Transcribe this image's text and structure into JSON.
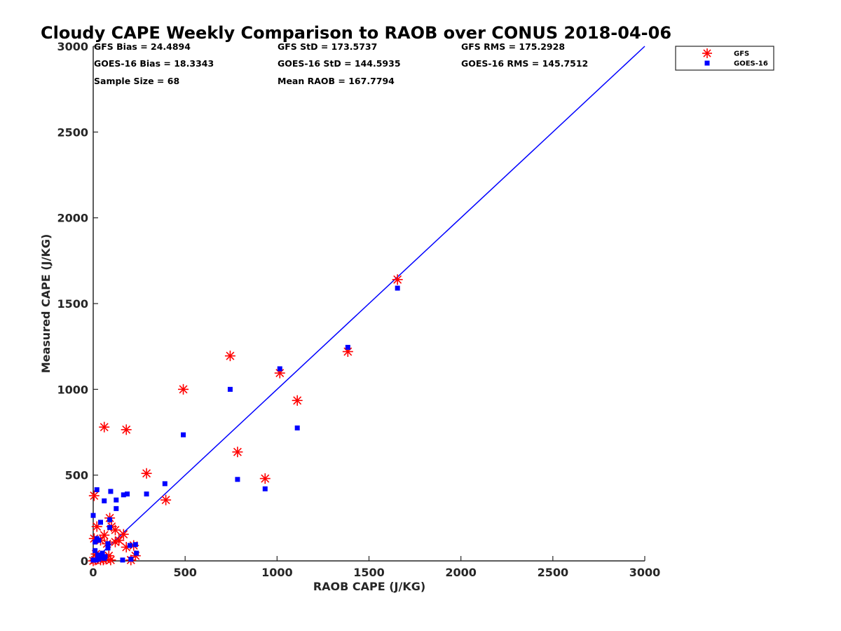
{
  "chart_data": {
    "type": "scatter",
    "title": "Cloudy CAPE Weekly Comparison to RAOB over CONUS 2018-04-06",
    "xlabel": "RAOB CAPE (J/KG)",
    "ylabel": "Measured CAPE (J/KG)",
    "xlim": [
      0,
      3000
    ],
    "ylim": [
      0,
      3000
    ],
    "x_ticks": [
      "0",
      "500",
      "1000",
      "1500",
      "2000",
      "2500",
      "3000"
    ],
    "y_ticks": [
      "0",
      "500",
      "1000",
      "1500",
      "2000",
      "2500",
      "3000"
    ],
    "x_tick_values": [
      0,
      500,
      1000,
      1500,
      2000,
      2500,
      3000
    ],
    "y_tick_values": [
      0,
      500,
      1000,
      1500,
      2000,
      2500,
      3000
    ],
    "grid": false,
    "legend_position": "top-right",
    "stats": [
      [
        "GFS Bias = 24.4894",
        "GFS StD = 173.5737",
        "GFS RMS = 175.2928"
      ],
      [
        "GOES-16 Bias = 18.3343",
        "GOES-16 StD = 144.5935",
        "GOES-16 RMS = 145.7512"
      ],
      [
        "Sample Size = 68",
        "Mean RAOB = 167.7794",
        ""
      ]
    ],
    "reference_line": {
      "x": [
        0,
        3000
      ],
      "y": [
        0,
        3000
      ],
      "color": "#0000ff"
    },
    "series": [
      {
        "name": "GFS",
        "marker": "asterisk",
        "color": "#ff0000",
        "points": [
          [
            5,
            380
          ],
          [
            60,
            780
          ],
          [
            180,
            765
          ],
          [
            290,
            510
          ],
          [
            395,
            355
          ],
          [
            490,
            1000
          ],
          [
            745,
            1195
          ],
          [
            785,
            635
          ],
          [
            935,
            480
          ],
          [
            1015,
            1095
          ],
          [
            1110,
            935
          ],
          [
            1385,
            1220
          ],
          [
            1655,
            1640
          ],
          [
            90,
            250
          ],
          [
            100,
            200
          ],
          [
            120,
            180
          ],
          [
            140,
            120
          ],
          [
            165,
            155
          ],
          [
            180,
            80
          ],
          [
            220,
            90
          ],
          [
            230,
            30
          ],
          [
            20,
            200
          ],
          [
            40,
            120
          ],
          [
            60,
            150
          ],
          [
            75,
            100
          ],
          [
            5,
            130
          ],
          [
            15,
            40
          ],
          [
            25,
            15
          ],
          [
            40,
            5
          ],
          [
            70,
            10
          ],
          [
            85,
            30
          ],
          [
            95,
            5
          ],
          [
            0,
            0
          ],
          [
            10,
            5
          ],
          [
            55,
            5
          ],
          [
            120,
            110
          ],
          [
            205,
            5
          ]
        ]
      },
      {
        "name": "GOES-16",
        "marker": "square",
        "color": "#0000ff",
        "points": [
          [
            20,
            415
          ],
          [
            95,
            405
          ],
          [
            60,
            350
          ],
          [
            125,
            355
          ],
          [
            165,
            385
          ],
          [
            185,
            390
          ],
          [
            125,
            305
          ],
          [
            0,
            265
          ],
          [
            90,
            240
          ],
          [
            40,
            225
          ],
          [
            90,
            195
          ],
          [
            290,
            390
          ],
          [
            390,
            450
          ],
          [
            490,
            735
          ],
          [
            745,
            1000
          ],
          [
            785,
            475
          ],
          [
            935,
            420
          ],
          [
            1015,
            1120
          ],
          [
            1110,
            775
          ],
          [
            1385,
            1245
          ],
          [
            1655,
            1590
          ],
          [
            10,
            110
          ],
          [
            20,
            130
          ],
          [
            30,
            120
          ],
          [
            80,
            100
          ],
          [
            80,
            75
          ],
          [
            200,
            90
          ],
          [
            230,
            95
          ],
          [
            235,
            45
          ],
          [
            160,
            5
          ],
          [
            205,
            10
          ],
          [
            10,
            60
          ],
          [
            25,
            35
          ],
          [
            40,
            20
          ],
          [
            50,
            45
          ],
          [
            0,
            5
          ],
          [
            15,
            5
          ],
          [
            30,
            10
          ],
          [
            60,
            15
          ],
          [
            65,
            25
          ]
        ]
      }
    ]
  }
}
